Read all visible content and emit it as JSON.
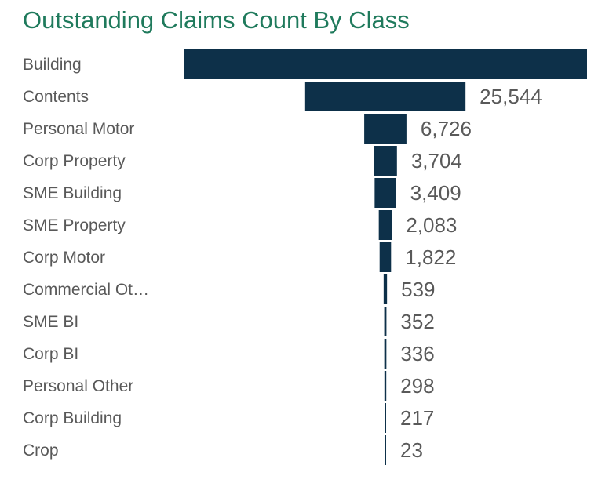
{
  "chart_data": {
    "type": "bar",
    "orientation": "horizontal-funnel",
    "title": "Outstanding Claims Count By Class",
    "categories": [
      "Building",
      "Contents",
      "Personal Motor",
      "Corp Property",
      "SME Building",
      "SME Property",
      "Corp Motor",
      "Commercial Ot…",
      "SME BI",
      "Corp BI",
      "Personal Other",
      "Corp Building",
      "Crop"
    ],
    "values": [
      64250,
      25544,
      6726,
      3704,
      3409,
      2083,
      1822,
      539,
      352,
      336,
      298,
      217,
      23
    ],
    "value_labels": [
      null,
      "25,544",
      "6,726",
      "3,704",
      "3,409",
      "2,083",
      "1,822",
      "539",
      "352",
      "336",
      "298",
      "217",
      "23"
    ],
    "bar_color": "#0d3049",
    "label_color": "#595959",
    "title_color": "#1f7a5c"
  }
}
